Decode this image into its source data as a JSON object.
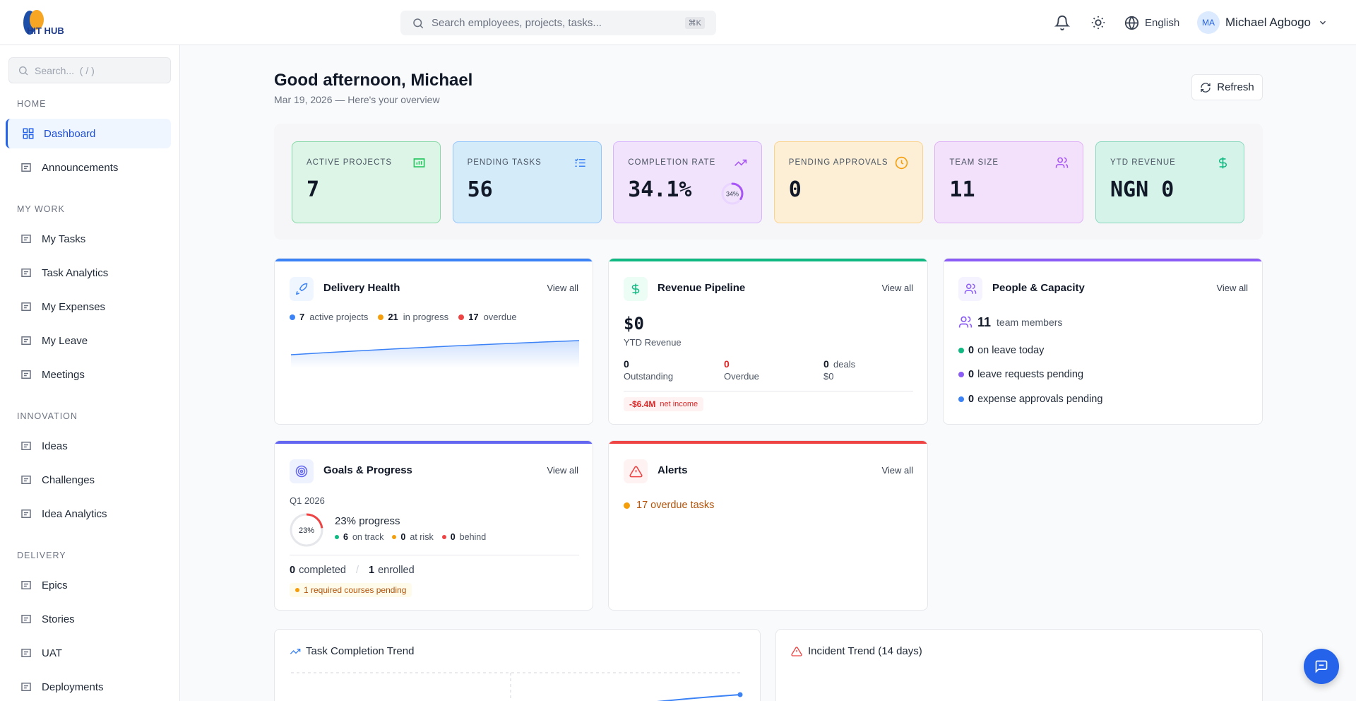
{
  "header": {
    "logo": "HIT HUB",
    "search_placeholder": "Search employees, projects, tasks...",
    "search_shortcut": "⌘K",
    "language": "English",
    "user_initials": "MA",
    "user_name": "Michael Agbogo"
  },
  "sidebar": {
    "search_placeholder": "Search...  ( / )",
    "sections": [
      {
        "title": "HOME",
        "items": [
          "Dashboard",
          "Announcements"
        ]
      },
      {
        "title": "MY WORK",
        "items": [
          "My Tasks",
          "Task Analytics",
          "My Expenses",
          "My Leave",
          "Meetings"
        ]
      },
      {
        "title": "INNOVATION",
        "items": [
          "Ideas",
          "Challenges",
          "Idea Analytics"
        ]
      },
      {
        "title": "DELIVERY",
        "items": [
          "Epics",
          "Stories",
          "UAT",
          "Deployments"
        ]
      }
    ]
  },
  "page": {
    "greeting": "Good afternoon, Michael",
    "subtitle": "Mar 19, 2026 — Here's your overview",
    "refresh": "Refresh"
  },
  "kpis": [
    {
      "label": "ACTIVE PROJECTS",
      "value": "7"
    },
    {
      "label": "PENDING TASKS",
      "value": "56"
    },
    {
      "label": "COMPLETION RATE",
      "value": "34.1%",
      "ring": {
        "value": 34,
        "label": "34%"
      }
    },
    {
      "label": "PENDING APPROVALS",
      "value": "0"
    },
    {
      "label": "TEAM SIZE",
      "value": "11"
    },
    {
      "label": "YTD REVENUE",
      "value": "NGN 0"
    }
  ],
  "delivery_health": {
    "title": "Delivery Health",
    "view_all": "View all",
    "stats": [
      {
        "value": "7",
        "label": "active projects"
      },
      {
        "value": "21",
        "label": "in progress"
      },
      {
        "value": "17",
        "label": "overdue"
      }
    ]
  },
  "revenue_pipeline": {
    "title": "Revenue Pipeline",
    "view_all": "View all",
    "ytd_value": "$0",
    "ytd_label": "YTD Revenue",
    "stats": [
      {
        "value": "0",
        "label": "Outstanding"
      },
      {
        "value": "0",
        "label": "Overdue"
      },
      {
        "value": "0",
        "unit": "deals",
        "label": "$0"
      }
    ],
    "net_value": "-$6.4M",
    "net_label": "net income"
  },
  "people_capacity": {
    "title": "People & Capacity",
    "view_all": "View all",
    "team_value": "11",
    "team_label": "team members",
    "items": [
      {
        "value": "0",
        "label": "on leave today"
      },
      {
        "value": "0",
        "label": "leave requests pending"
      },
      {
        "value": "0",
        "label": "expense approvals pending"
      }
    ]
  },
  "goals_progress": {
    "title": "Goals & Progress",
    "view_all": "View all",
    "period": "Q1 2026",
    "ring": {
      "value": 23,
      "label": "23%"
    },
    "progress": "23% progress",
    "stats": [
      {
        "value": "6",
        "label": "on track"
      },
      {
        "value": "0",
        "label": "at risk"
      },
      {
        "value": "0",
        "label": "behind"
      }
    ],
    "completed_value": "0",
    "completed_label": "completed",
    "separator": "/",
    "enrolled_value": "1",
    "enrolled_label": "enrolled",
    "pending": "1 required courses pending"
  },
  "alerts": {
    "title": "Alerts",
    "view_all": "View all",
    "item": "17 overdue tasks"
  },
  "task_completion_trend": {
    "title": "Task Completion Trend"
  },
  "incident_trend": {
    "title": "Incident Trend (14 days)"
  }
}
